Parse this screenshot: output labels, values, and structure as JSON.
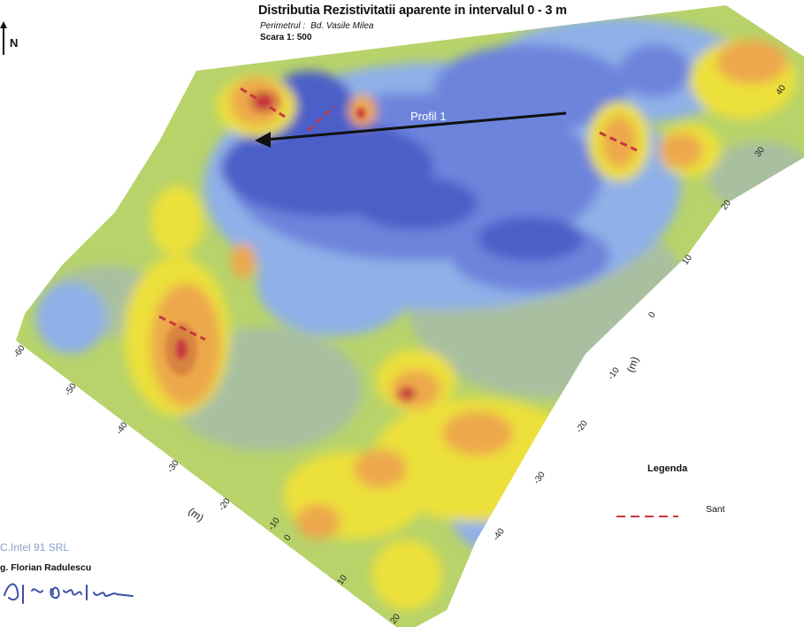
{
  "header": {
    "title": "Distributia Rezistivitatii aparente in intervalul 0 - 3 m",
    "perimeter_label": "Perimetrul :",
    "perimeter_value": "Bd. Vasile Milea",
    "scale": "Scara 1: 500"
  },
  "north": {
    "label": "N",
    "icon": "north-arrow-icon"
  },
  "profile": {
    "label": "Profil 1"
  },
  "axes": {
    "bottom_unit": "(m)",
    "right_unit": "(m)",
    "bottom_ticks": [
      "-60",
      "-50",
      "-40",
      "-30",
      "-20",
      "-10",
      "0",
      "10",
      "20"
    ],
    "right_ticks": [
      "40",
      "30",
      "20",
      "10",
      "0",
      "-10",
      "-20",
      "-30",
      "-40"
    ]
  },
  "legend": {
    "title": "Legenda",
    "items": [
      {
        "label": "Sant",
        "color": "#c8373f",
        "icon": "dashed-line-icon"
      }
    ]
  },
  "footer": {
    "company": "C.Intel 91 SRL",
    "engineer": "g. Florian Radulescu"
  },
  "colors": {
    "deep_blue": "#4b5fc8",
    "mid_blue": "#6d84dc",
    "light_blue": "#8fb0e8",
    "grey_green": "#a9c0a0",
    "green": "#b7d36a",
    "yellow": "#ece03a",
    "orange": "#eda84b",
    "dark_orange": "#d9843f",
    "red": "#c8373f",
    "profile_arrow": "#111111",
    "trench": "#c8373f"
  }
}
